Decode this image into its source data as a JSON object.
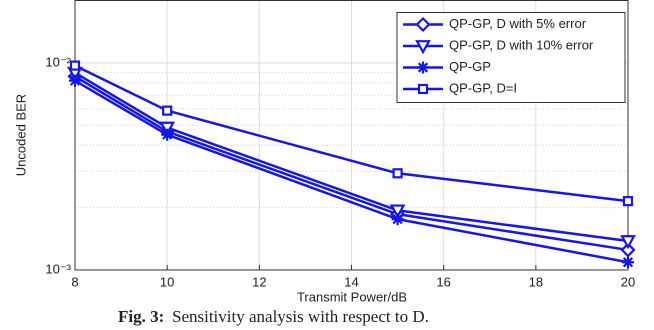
{
  "chart_data": {
    "type": "line",
    "xlabel": "Transmit Power/dB",
    "ylabel": "Uncoded BER",
    "x": [
      8,
      10,
      15,
      20
    ],
    "series": [
      {
        "name": "QP-GP, D with 5% error",
        "color": "#1515f0",
        "marker": "diamond",
        "values": [
          0.0086,
          0.00466,
          0.00186,
          0.00125
        ]
      },
      {
        "name": "QP-GP, D with 10% error",
        "color": "#1515f0",
        "marker": "triangle-down",
        "values": [
          0.00895,
          0.00487,
          0.00194,
          0.00138
        ]
      },
      {
        "name": "QP-GP",
        "color": "#1515f0",
        "marker": "star",
        "values": [
          0.0082,
          0.0045,
          0.00176,
          0.00109
        ]
      },
      {
        "name": "QP-GP, D=I",
        "color": "#1515f0",
        "marker": "square",
        "values": [
          0.0097,
          0.00588,
          0.00293,
          0.00215
        ]
      }
    ],
    "xlim": [
      8,
      20
    ],
    "xticks": [
      8,
      10,
      12,
      14,
      16,
      18,
      20
    ],
    "ylim": [
      0.001,
      0.02
    ],
    "yscale": "log",
    "yticks": [
      {
        "value": 0.001,
        "label": "10⁻³"
      },
      {
        "value": 0.01,
        "label": "10⁻²"
      }
    ],
    "yminorticks": [
      0.002,
      0.003,
      0.004,
      0.005,
      0.006,
      0.007,
      0.008,
      0.009
    ],
    "grid": true,
    "legend": "upper right",
    "caption": {
      "label": "Fig. 3:",
      "text": "Sensitivity analysis with respect to D."
    }
  }
}
